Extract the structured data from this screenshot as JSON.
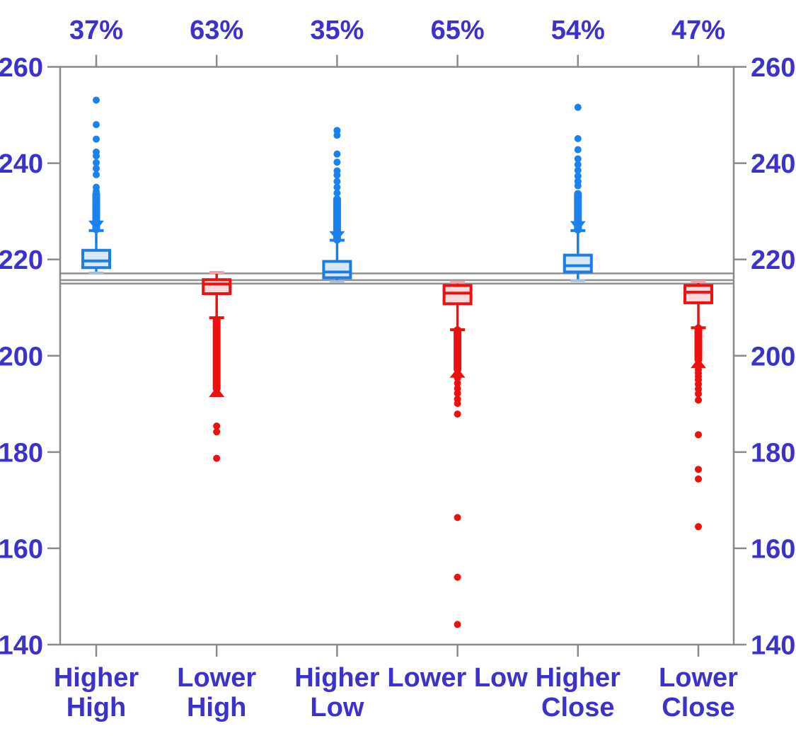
{
  "chart_data": {
    "type": "boxplot",
    "title": "",
    "orientation": "vertical",
    "y_axis": {
      "min": 140,
      "max": 260,
      "step": 20,
      "tick_labels": [
        "140",
        "160",
        "180",
        "200",
        "220",
        "240",
        "260"
      ],
      "sides": [
        "left",
        "right"
      ],
      "grid": false
    },
    "top_axis_percent_labels": [
      "37%",
      "63%",
      "35%",
      "65%",
      "54%",
      "47%"
    ],
    "reference_lines": [
      217.1,
      215.7,
      215.0
    ],
    "styles": {
      "axis_color": "#8A8A8A",
      "label_color": "#3B32CE",
      "blue": "#1B7EE2",
      "blue_dot": "#1A82EE",
      "blue_fill": "#D8E8F8",
      "blue_cap_muted": "#A9BFD8",
      "red": "#EE1111",
      "red_dot": "#EE0F0F",
      "red_fill": "#F9DBDD",
      "red_cap_muted": "#F2A2A8",
      "background": "#FFFFFF"
    },
    "categories": [
      {
        "label": "Higher High",
        "label_lines": [
          "Higher",
          "High"
        ],
        "percent": "37%",
        "color_key": "blue",
        "stats": {
          "whisker_low": 217.2,
          "q1": 218.3,
          "median": 219.7,
          "q3": 221.9,
          "whisker_high": 226.0
        },
        "dense_outlier_range": [
          233.5,
          226.3
        ],
        "outliers": [
          253.1,
          248.0,
          245.0,
          242.3,
          241.5,
          240.1,
          238.9,
          237.6,
          235.0,
          234.2
        ]
      },
      {
        "label": "Lower High",
        "label_lines": [
          "Lower",
          "High"
        ],
        "percent": "63%",
        "color_key": "red",
        "stats": {
          "whisker_low": 207.9,
          "q1": 212.9,
          "median": 214.9,
          "q3": 215.8,
          "whisker_high": 217.3
        },
        "dense_outlier_range": [
          207.5,
          193.2
        ],
        "outliers": [
          185.4,
          184.2,
          178.7
        ]
      },
      {
        "label": "Higher Low",
        "label_lines": [
          "Higher",
          "Low"
        ],
        "percent": "35%",
        "color_key": "blue",
        "stats": {
          "whisker_low": 215.4,
          "q1": 216.2,
          "median": 217.4,
          "q3": 219.6,
          "whisker_high": 224.0
        },
        "dense_outlier_range": [
          232.5,
          224.1
        ],
        "outliers": [
          246.8,
          245.8,
          241.9,
          240.2,
          238.4,
          237.5,
          236.2,
          235.0,
          233.8
        ]
      },
      {
        "label": "Lower Low",
        "label_lines": [
          "Lower Low"
        ],
        "percent": "65%",
        "color_key": "red",
        "stats": {
          "whisker_low": 205.4,
          "q1": 210.8,
          "median": 213.0,
          "q3": 214.6,
          "whisker_high": 215.3
        },
        "dense_outlier_range": [
          205.3,
          197.2
        ],
        "outliers": [
          196.3,
          195.4,
          194.3,
          193.2,
          192.2,
          191.0,
          190.1,
          187.9,
          166.4,
          154.0,
          144.2
        ]
      },
      {
        "label": "Higher Close",
        "label_lines": [
          "Higher",
          "Close"
        ],
        "percent": "54%",
        "color_key": "blue",
        "stats": {
          "whisker_low": 215.6,
          "q1": 217.4,
          "median": 218.7,
          "q3": 220.9,
          "whisker_high": 226.0
        },
        "dense_outlier_range": [
          233.6,
          226.2
        ],
        "outliers": [
          251.6,
          245.1,
          242.8,
          240.9,
          239.7,
          238.5,
          237.3,
          236.2,
          235.3
        ]
      },
      {
        "label": "Lower Close",
        "label_lines": [
          "Lower",
          "Close"
        ],
        "percent": "47%",
        "color_key": "red",
        "stats": {
          "whisker_low": 205.8,
          "q1": 211.0,
          "median": 213.2,
          "q3": 214.6,
          "whisker_high": 215.4
        },
        "dense_outlier_range": [
          205.7,
          199.2
        ],
        "outliers": [
          197.9,
          197.1,
          196.4,
          195.7,
          195.0,
          194.1,
          193.1,
          192.1,
          190.8,
          183.6,
          176.4,
          174.4,
          164.5
        ]
      }
    ]
  }
}
